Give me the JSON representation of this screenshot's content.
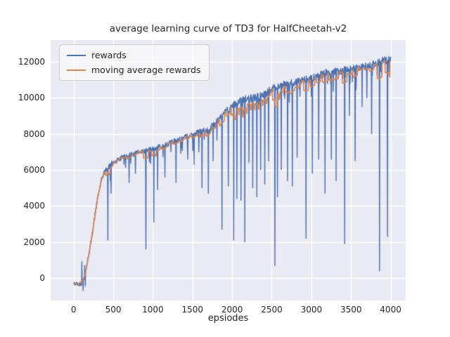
{
  "chart_data": {
    "type": "line",
    "title": "average learning curve of TD3 for HalfCheetah-v2",
    "xlabel": "epsiodes",
    "ylabel": "",
    "x_ticks": [
      0,
      500,
      1000,
      1500,
      2000,
      2500,
      3000,
      3500,
      4000
    ],
    "y_ticks": [
      0,
      2000,
      4000,
      6000,
      8000,
      10000,
      12000
    ],
    "xlim": [
      -290,
      4190
    ],
    "ylim": [
      -1250,
      13200
    ],
    "grid": true,
    "legend_position": "upper-left",
    "background": "#eaeaf2",
    "grid_color": "#ffffff",
    "series": [
      {
        "name": "rewards",
        "color": "#4c72b0"
      },
      {
        "name": "moving average rewards",
        "color": "#dd8452"
      }
    ],
    "curve_anchors": [
      [
        0,
        -320
      ],
      [
        60,
        -340
      ],
      [
        100,
        -300
      ],
      [
        130,
        -100
      ],
      [
        150,
        300
      ],
      [
        170,
        800
      ],
      [
        200,
        1500
      ],
      [
        230,
        2300
      ],
      [
        260,
        3200
      ],
      [
        290,
        4100
      ],
      [
        320,
        4800
      ],
      [
        350,
        5400
      ],
      [
        380,
        5800
      ],
      [
        420,
        6050
      ],
      [
        460,
        6250
      ],
      [
        500,
        6400
      ],
      [
        600,
        6650
      ],
      [
        700,
        6800
      ],
      [
        800,
        6950
      ],
      [
        900,
        7050
      ],
      [
        1000,
        7150
      ],
      [
        1100,
        7300
      ],
      [
        1200,
        7450
      ],
      [
        1300,
        7650
      ],
      [
        1400,
        7800
      ],
      [
        1500,
        7950
      ],
      [
        1600,
        8050
      ],
      [
        1700,
        8200
      ],
      [
        1800,
        8600
      ],
      [
        1900,
        9100
      ],
      [
        2000,
        9550
      ],
      [
        2050,
        9700
      ],
      [
        2100,
        9800
      ],
      [
        2200,
        9950
      ],
      [
        2300,
        10000
      ],
      [
        2400,
        10150
      ],
      [
        2500,
        10500
      ],
      [
        2600,
        10650
      ],
      [
        2700,
        10750
      ],
      [
        2800,
        10850
      ],
      [
        2900,
        10950
      ],
      [
        3000,
        11050
      ],
      [
        3100,
        11250
      ],
      [
        3200,
        11400
      ],
      [
        3300,
        11450
      ],
      [
        3400,
        11500
      ],
      [
        3500,
        11600
      ],
      [
        3600,
        11650
      ],
      [
        3700,
        11750
      ],
      [
        3800,
        11850
      ],
      [
        3900,
        12050
      ],
      [
        4000,
        12100
      ]
    ],
    "dip_events": [
      [
        105,
        900
      ],
      [
        120,
        -700
      ],
      [
        138,
        700
      ],
      [
        148,
        -450
      ],
      [
        430,
        2100
      ],
      [
        470,
        4700
      ],
      [
        700,
        5300
      ],
      [
        780,
        5800
      ],
      [
        910,
        1600
      ],
      [
        1010,
        3100
      ],
      [
        1060,
        4900
      ],
      [
        1150,
        5600
      ],
      [
        1290,
        5300
      ],
      [
        1440,
        6600
      ],
      [
        1520,
        6300
      ],
      [
        1620,
        5000
      ],
      [
        1700,
        4700
      ],
      [
        1760,
        6500
      ],
      [
        1870,
        2700
      ],
      [
        1950,
        5100
      ],
      [
        2020,
        2100
      ],
      [
        2060,
        4400
      ],
      [
        2110,
        4300
      ],
      [
        2160,
        2000
      ],
      [
        2210,
        6400
      ],
      [
        2260,
        5000
      ],
      [
        2310,
        4500
      ],
      [
        2360,
        6000
      ],
      [
        2410,
        5200
      ],
      [
        2460,
        6500
      ],
      [
        2540,
        700
      ],
      [
        2570,
        4500
      ],
      [
        2620,
        6000
      ],
      [
        2700,
        5400
      ],
      [
        2760,
        5100
      ],
      [
        2820,
        6700
      ],
      [
        2930,
        2200
      ],
      [
        3010,
        5800
      ],
      [
        3090,
        6600
      ],
      [
        3170,
        4700
      ],
      [
        3250,
        6600
      ],
      [
        3310,
        5400
      ],
      [
        3420,
        1900
      ],
      [
        3480,
        9000
      ],
      [
        3550,
        6500
      ],
      [
        3640,
        9500
      ],
      [
        3700,
        10000
      ],
      [
        3760,
        8000
      ],
      [
        3860,
        400
      ],
      [
        3960,
        2300
      ]
    ],
    "noise": {
      "early": 110,
      "mid": 140,
      "late": 210,
      "step": 4,
      "seed": 42
    },
    "ma_half_window": 7
  }
}
